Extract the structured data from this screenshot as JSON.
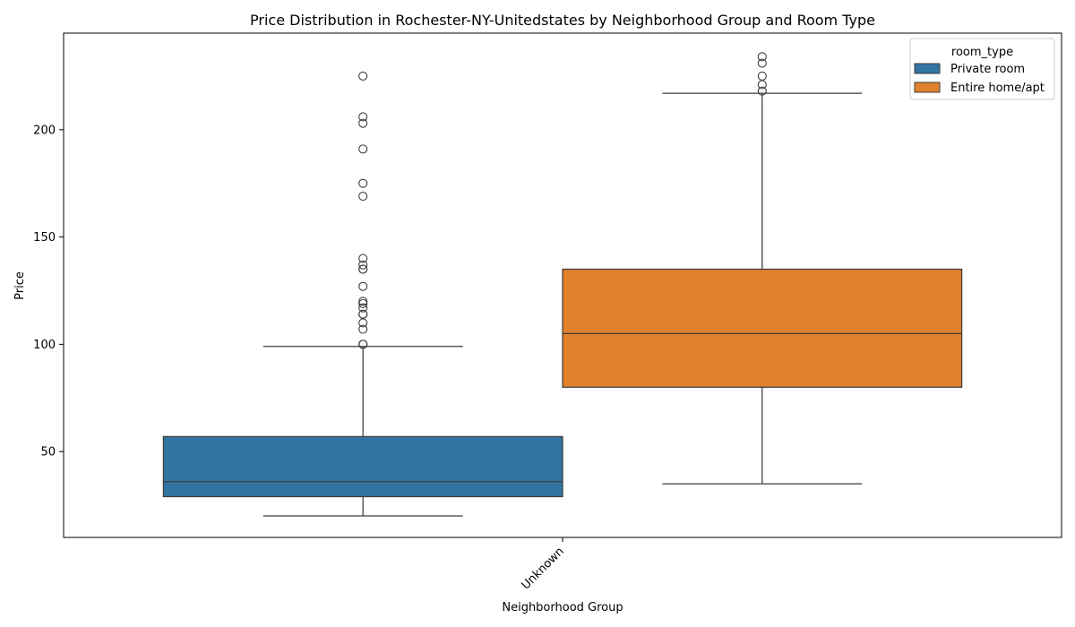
{
  "chart_data": {
    "type": "box",
    "title": "Price Distribution in Rochester-NY-Unitedstates by Neighborhood Group and Room Type",
    "xlabel": "Neighborhood Group",
    "ylabel": "Price",
    "categories": [
      "Unknown"
    ],
    "ylim": [
      10,
      245
    ],
    "yticks": [
      50,
      100,
      150,
      200
    ],
    "grid": false,
    "legend": {
      "title": "room_type",
      "placement": "top-right"
    },
    "series": [
      {
        "name": "Private room",
        "color": "#3274a1",
        "boxes": [
          {
            "category": "Unknown",
            "whisker_low": 20,
            "q1": 29,
            "median": 36,
            "q3": 57,
            "whisker_high": 99,
            "outliers": [
              100,
              100,
              100,
              107,
              110,
              114,
              114,
              117,
              119,
              120,
              127,
              135,
              135,
              137,
              140,
              169,
              175,
              191,
              203,
              206,
              225
            ]
          }
        ]
      },
      {
        "name": "Entire home/apt",
        "color": "#e1812c",
        "boxes": [
          {
            "category": "Unknown",
            "whisker_low": 35,
            "q1": 80,
            "median": 105,
            "q3": 135,
            "whisker_high": 217,
            "outliers": [
              218,
              221,
              225,
              231,
              234
            ]
          }
        ]
      }
    ]
  }
}
